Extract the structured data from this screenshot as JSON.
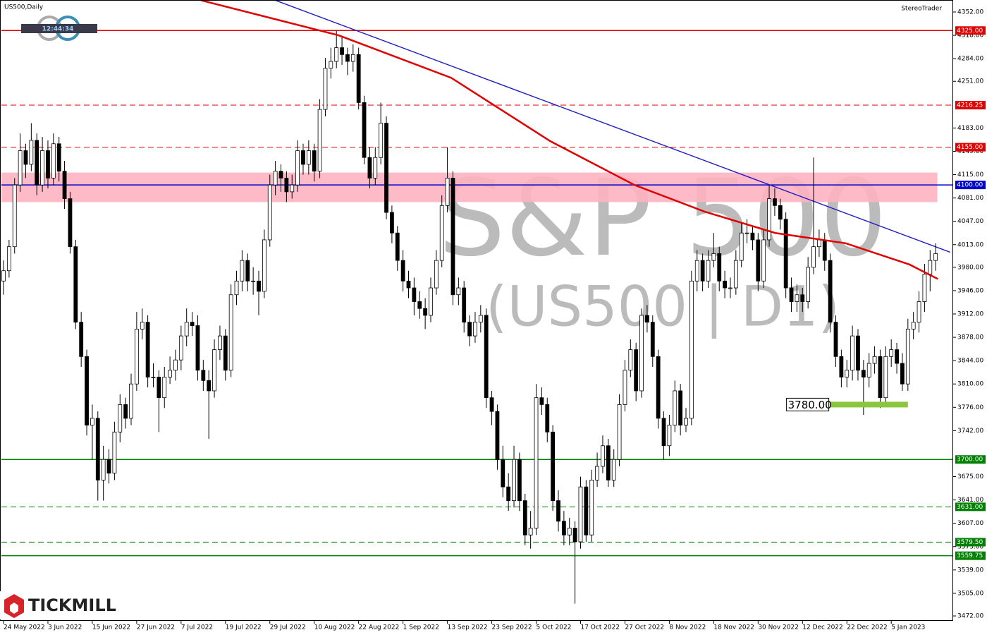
{
  "chart_data": {
    "type": "candlestick",
    "symbol": "US500,Daily",
    "brand": "StereoTrader",
    "clock": "12:44:34",
    "logo": "TICKMILL",
    "watermark": [
      "S&P 500",
      "(US500 | D1)"
    ],
    "categories": [
      "24 May 2022",
      null,
      null,
      null,
      null,
      null,
      null,
      null,
      "3 Jun 2022",
      null,
      null,
      null,
      null,
      null,
      null,
      null,
      "15 Jun 2022",
      null,
      null,
      null,
      null,
      null,
      null,
      null,
      "27 Jun 2022",
      null,
      null,
      null,
      null,
      null,
      null,
      null,
      "7 Jul 2022",
      null,
      null,
      null,
      null,
      null,
      null,
      null,
      "19 Jul 2022",
      null,
      null,
      null,
      null,
      null,
      null,
      null,
      "29 Jul 2022",
      null,
      null,
      null,
      null,
      null,
      null,
      null,
      "10 Aug 2022",
      null,
      null,
      null,
      null,
      null,
      null,
      null,
      "22 Aug 2022",
      null,
      null,
      null,
      null,
      null,
      null,
      null,
      "1 Sep 2022",
      null,
      null,
      null,
      null,
      null,
      null,
      null,
      "13 Sep 2022",
      null,
      null,
      null,
      null,
      null,
      null,
      null,
      "23 Sep 2022",
      null,
      null,
      null,
      null,
      null,
      null,
      null,
      "5 Oct 2022",
      null,
      null,
      null,
      null,
      null,
      null,
      null,
      "17 Oct 2022",
      null,
      null,
      null,
      null,
      null,
      null,
      null,
      "27 Oct 2022",
      null,
      null,
      null,
      null,
      null,
      null,
      null,
      "8 Nov 2022",
      null,
      null,
      null,
      null,
      null,
      null,
      null,
      "18 Nov 2022",
      null,
      null,
      null,
      null,
      null,
      null,
      null,
      "30 Nov 2022",
      null,
      null,
      null,
      null,
      null,
      null,
      null,
      "12 Dec 2022",
      null,
      null,
      null,
      null,
      null,
      null,
      null,
      "22 Dec 2022",
      null,
      null,
      null,
      null,
      null,
      null,
      null,
      "5 Jan 2023",
      null,
      null,
      null,
      null,
      null,
      null,
      null,
      null
    ],
    "open": [
      3960,
      3975,
      4010,
      4100,
      4150,
      4130,
      4165,
      4100,
      4150,
      4110,
      4160,
      4120,
      4080,
      4010,
      3900,
      3850,
      3750,
      3760,
      3670,
      3700,
      3680,
      3740,
      3780,
      3760,
      3810,
      3890,
      3900,
      3820,
      3820,
      3790,
      3820,
      3830,
      3845,
      3880,
      3900,
      3895,
      3830,
      3815,
      3800,
      3860,
      3880,
      3830,
      3940,
      3960,
      3990,
      3960,
      3960,
      3945,
      4020,
      4100,
      4120,
      4110,
      4090,
      4100,
      4150,
      4130,
      4150,
      4120,
      4210,
      4270,
      4280,
      4300,
      4290,
      4280,
      4290,
      4220,
      4140,
      4110,
      4140,
      4190,
      4060,
      4030,
      3990,
      3960,
      3950,
      3930,
      3920,
      3910,
      3950,
      3990,
      4070,
      4110,
      3940,
      3950,
      3900,
      3880,
      3900,
      3910,
      3790,
      3770,
      3700,
      3660,
      3640,
      3700,
      3640,
      3590,
      3600,
      3790,
      3780,
      3740,
      3640,
      3610,
      3590,
      3600,
      3580,
      3660,
      3590,
      3670,
      3690,
      3720,
      3670,
      3700,
      3780,
      3830,
      3860,
      3800,
      3910,
      3900,
      3850,
      3760,
      3720,
      3750,
      3800,
      3750,
      3760,
      3960,
      3990,
      3960,
      3990,
      4000,
      3960,
      3950,
      3950,
      3990,
      4030,
      4030,
      4020,
      3960,
      4020,
      4080,
      4070,
      4050,
      3950,
      3930,
      3940,
      3930,
      3980,
      4010,
      4020,
      3990,
      3900,
      3850,
      3820,
      3830,
      3880,
      3830,
      3820,
      3840,
      3850,
      3790,
      3850,
      3860,
      3840,
      3810,
      3890,
      3900,
      3930,
      3970,
      3990
    ],
    "high": [
      3990,
      4020,
      4110,
      4175,
      4160,
      4190,
      4175,
      4170,
      4165,
      4175,
      4170,
      4135,
      4090,
      4020,
      3915,
      3860,
      3780,
      3770,
      3720,
      3715,
      3755,
      3795,
      3790,
      3825,
      3915,
      3920,
      3910,
      3840,
      3830,
      3835,
      3850,
      3860,
      3895,
      3920,
      3915,
      3910,
      3845,
      3830,
      3875,
      3895,
      3890,
      3955,
      3975,
      4005,
      4000,
      3980,
      3975,
      4035,
      4115,
      4135,
      4130,
      4120,
      4115,
      4165,
      4160,
      4165,
      4160,
      4225,
      4285,
      4300,
      4325,
      4315,
      4300,
      4305,
      4300,
      4230,
      4155,
      4155,
      4220,
      4200,
      4070,
      4040,
      4005,
      3975,
      3965,
      3945,
      3935,
      3965,
      4005,
      4085,
      4155,
      4120,
      3965,
      3960,
      3910,
      3915,
      3925,
      3920,
      3800,
      3780,
      3720,
      3680,
      3720,
      3710,
      3650,
      3625,
      3810,
      3805,
      3790,
      3750,
      3655,
      3625,
      3615,
      3610,
      3675,
      3670,
      3685,
      3710,
      3735,
      3730,
      3715,
      3795,
      3845,
      3875,
      3870,
      3920,
      3925,
      3910,
      3860,
      3770,
      3765,
      3815,
      3810,
      3775,
      3975,
      4005,
      4000,
      4005,
      4030,
      4010,
      3975,
      3965,
      4005,
      4045,
      4050,
      4040,
      4030,
      4035,
      4100,
      4095,
      4080,
      4060,
      3965,
      3955,
      3950,
      3995,
      4140,
      4035,
      4030,
      4000,
      3910,
      3860,
      3845,
      3895,
      3890,
      3845,
      3855,
      3865,
      3860,
      3865,
      3875,
      3870,
      3855,
      3905,
      3915,
      3945,
      3985,
      4005,
      4015
    ],
    "low": [
      3940,
      3965,
      4000,
      4090,
      4110,
      4120,
      4085,
      4090,
      4095,
      4100,
      4105,
      4065,
      4000,
      3890,
      3835,
      3735,
      3700,
      3640,
      3640,
      3665,
      3670,
      3725,
      3745,
      3750,
      3800,
      3875,
      3805,
      3805,
      3740,
      3775,
      3810,
      3815,
      3830,
      3865,
      3880,
      3815,
      3800,
      3730,
      3790,
      3845,
      3815,
      3820,
      3925,
      3945,
      3945,
      3940,
      3910,
      3935,
      4010,
      4085,
      4090,
      4075,
      4080,
      4090,
      4115,
      4115,
      4105,
      4110,
      4200,
      4255,
      4270,
      4275,
      4260,
      4265,
      4210,
      4130,
      4095,
      4100,
      4130,
      4050,
      4015,
      3975,
      3945,
      3935,
      3910,
      3905,
      3890,
      3900,
      3940,
      3980,
      4060,
      3925,
      3925,
      3885,
      3865,
      3870,
      3885,
      3775,
      3750,
      3685,
      3645,
      3625,
      3630,
      3625,
      3575,
      3570,
      3590,
      3765,
      3725,
      3625,
      3595,
      3575,
      3575,
      3490,
      3570,
      3580,
      3580,
      3660,
      3680,
      3660,
      3660,
      3690,
      3770,
      3820,
      3785,
      3790,
      3885,
      3835,
      3745,
      3700,
      3705,
      3740,
      3735,
      3740,
      3750,
      3945,
      3945,
      3950,
      3980,
      3945,
      3935,
      3935,
      3940,
      3980,
      4015,
      4005,
      3945,
      3950,
      4010,
      4055,
      4035,
      3935,
      3915,
      3915,
      3915,
      3920,
      3970,
      3995,
      3975,
      3885,
      3835,
      3805,
      3805,
      3815,
      3815,
      3765,
      3805,
      3825,
      3775,
      3780,
      3835,
      3825,
      3800,
      3800,
      3875,
      3885,
      3915,
      3945,
      3975
    ],
    "close": [
      3975,
      4010,
      4100,
      4150,
      4130,
      4165,
      4100,
      4150,
      4110,
      4160,
      4120,
      4080,
      4010,
      3900,
      3850,
      3750,
      3760,
      3670,
      3700,
      3680,
      3740,
      3780,
      3760,
      3810,
      3890,
      3900,
      3820,
      3820,
      3790,
      3820,
      3830,
      3845,
      3880,
      3900,
      3895,
      3830,
      3815,
      3800,
      3860,
      3880,
      3830,
      3940,
      3960,
      3990,
      3960,
      3960,
      3945,
      4020,
      4100,
      4120,
      4110,
      4090,
      4100,
      4150,
      4130,
      4150,
      4120,
      4210,
      4270,
      4280,
      4300,
      4290,
      4280,
      4290,
      4220,
      4140,
      4110,
      4140,
      4190,
      4060,
      4030,
      3990,
      3960,
      3950,
      3930,
      3920,
      3910,
      3950,
      3990,
      4070,
      4110,
      3940,
      3950,
      3900,
      3880,
      3900,
      3910,
      3790,
      3770,
      3700,
      3660,
      3640,
      3700,
      3640,
      3590,
      3600,
      3790,
      3780,
      3740,
      3640,
      3610,
      3590,
      3600,
      3580,
      3660,
      3590,
      3670,
      3690,
      3720,
      3670,
      3700,
      3780,
      3830,
      3860,
      3800,
      3910,
      3900,
      3850,
      3760,
      3720,
      3750,
      3800,
      3750,
      3760,
      3960,
      3990,
      3960,
      3990,
      4000,
      3960,
      3950,
      3950,
      3990,
      4030,
      4030,
      4020,
      3960,
      4020,
      4080,
      4070,
      4050,
      3950,
      3930,
      3940,
      3930,
      3980,
      4010,
      4020,
      3990,
      3900,
      3850,
      3820,
      3830,
      3880,
      3830,
      3820,
      3840,
      3850,
      3790,
      3850,
      3860,
      3840,
      3810,
      3890,
      3900,
      3930,
      3970,
      3990,
      4000
    ],
    "ylim": [
      3472,
      4352
    ],
    "yticks": [
      {
        "value": 4352,
        "label": "4352.00"
      },
      {
        "value": 4318,
        "label": "4318.00"
      },
      {
        "value": 4284,
        "label": "4284.00"
      },
      {
        "value": 4251,
        "label": "4251.00"
      },
      {
        "value": 4183,
        "label": "4183.00"
      },
      {
        "value": 4149,
        "label": "4149.00"
      },
      {
        "value": 4115,
        "label": "4115.00"
      },
      {
        "value": 4081,
        "label": "4081.00"
      },
      {
        "value": 4047,
        "label": "4047.00"
      },
      {
        "value": 4013,
        "label": "4013.00"
      },
      {
        "value": 3980,
        "label": "3980.00"
      },
      {
        "value": 3946,
        "label": "3946.00"
      },
      {
        "value": 3912,
        "label": "3912.00"
      },
      {
        "value": 3878,
        "label": "3878.00"
      },
      {
        "value": 3844,
        "label": "3844.00"
      },
      {
        "value": 3810,
        "label": "3810.00"
      },
      {
        "value": 3776,
        "label": "3776.00"
      },
      {
        "value": 3742,
        "label": "3742.00"
      },
      {
        "value": 3675,
        "label": "3675.00"
      },
      {
        "value": 3641,
        "label": "3641.00"
      },
      {
        "value": 3607,
        "label": "3607.00"
      },
      {
        "value": 3573,
        "label": "3573.00"
      },
      {
        "value": 3539,
        "label": "3539.00"
      },
      {
        "value": 3505,
        "label": "3505.00"
      },
      {
        "value": 3472,
        "label": "3472.00"
      }
    ],
    "levels": [
      {
        "value": 4325,
        "label": "4325.00",
        "color": "#e00000",
        "dashed": false
      },
      {
        "value": 4216.25,
        "label": "4216.25",
        "color": "#e00000",
        "dashed": true
      },
      {
        "value": 4155,
        "label": "4155.00",
        "color": "#e00000",
        "dashed": true
      },
      {
        "value": 4100,
        "label": "4100.00",
        "color": "#0000cc",
        "dashed": false
      },
      {
        "value": 3700,
        "label": "3700.00",
        "color": "#008000",
        "dashed": false
      },
      {
        "value": 3631,
        "label": "3631.00",
        "color": "#008000",
        "dashed": true
      },
      {
        "value": 3579.5,
        "label": "3579.50",
        "color": "#008000",
        "dashed": true
      },
      {
        "value": 3559.75,
        "label": "3559.75",
        "color": "#008000",
        "dashed": false
      }
    ],
    "zone": {
      "from": 4075,
      "to": 4118,
      "color": "#ffb3c1"
    },
    "trendline": {
      "x": [
        49,
        170.6
      ],
      "values": [
        4369,
        4002
      ],
      "color": "#2020c0"
    },
    "ma": {
      "x": [
        35.6,
        60.4,
        80.7,
        98.5,
        113.7,
        126.4,
        139.1,
        151.8,
        163.3,
        168.4
      ],
      "values": [
        4369,
        4318,
        4256,
        4164,
        4100,
        4061,
        4030,
        4015,
        3984,
        3963
      ],
      "color": "#e00000"
    },
    "annotation": {
      "value": 3780,
      "label": "3780.00",
      "x": [
        149,
        163
      ],
      "color": "#8cc63f"
    }
  }
}
